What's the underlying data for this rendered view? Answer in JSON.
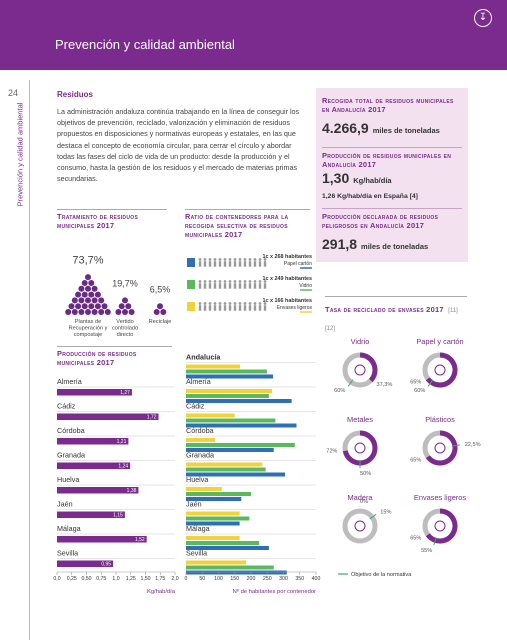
{
  "header": {
    "title": "Prevención y calidad ambiental"
  },
  "sidebar": {
    "page_number": "24",
    "section": "Prevención y calidad ambiental"
  },
  "intro": {
    "heading": "Residuos",
    "text": "La administración andaluza continúa trabajando en la línea de conseguir los objetivos de prevención, reciclado, valorización y eliminación de residuos propuestos en disposiciones y normativas europeas y estatales, en las que destaca el concepto de economía circular, para cerrar el círculo y abordar todas las fases del ciclo de vida de un producto: desde la producción y el consumo, hasta la gestión de los residuos y el mercado de materias primas secundarias."
  },
  "key_figures": [
    {
      "title": "Recogida total de residuos municipales en Andalucía 2017",
      "value": "4.266,9",
      "unit": "miles de toneladas"
    },
    {
      "title": "Producción de residuos municipales en Andalucía 2017",
      "value": "1,30",
      "unit": "Kg/hab/día",
      "note": "1,26 Kg/hab/día en España [4]"
    },
    {
      "title": "Producción declarada de residuos peligrosos en Andalucía 2017",
      "value": "291,8",
      "unit": "miles de toneladas"
    }
  ],
  "chart_data": [
    {
      "type": "pictogram",
      "title": "Tratamiento de residuos municipales 2017",
      "categories": [
        "Plantas de Recuperación y compostaje",
        "Vertido controlado directo",
        "Reciclaje"
      ],
      "values": [
        73.7,
        19.7,
        6.5
      ],
      "value_labels": [
        "73,7%",
        "19,7%",
        "6,5%"
      ],
      "color": "#6a2a86"
    },
    {
      "type": "hbar",
      "title": "Producción de residuos municipales 2017",
      "categories": [
        "Almería",
        "Cádiz",
        "Córdoba",
        "Granada",
        "Huelva",
        "Jaén",
        "Málaga",
        "Sevilla"
      ],
      "values": [
        1.27,
        1.72,
        1.21,
        1.24,
        1.38,
        1.15,
        1.52,
        0.95
      ],
      "value_labels": [
        "1,27",
        "1,72",
        "1,21",
        "1,24",
        "1,38",
        "1,15",
        "1,52",
        "0,95"
      ],
      "color": "#7b2a8e",
      "xlim": [
        0,
        2
      ],
      "xticks": [
        {
          "value": 0,
          "label": "0,0"
        },
        {
          "value": 0.25,
          "label": "0,25"
        },
        {
          "value": 0.5,
          "label": "0,50"
        },
        {
          "value": 0.75,
          "label": "0,75"
        },
        {
          "value": 1,
          "label": "1,0"
        },
        {
          "value": 1.25,
          "label": "1,25"
        },
        {
          "value": 1.5,
          "label": "1,50"
        },
        {
          "value": 1.75,
          "label": "1,75"
        },
        {
          "value": 2,
          "label": "2,0"
        }
      ],
      "xlabel": "Kg/hab/día"
    },
    {
      "type": "grouped_hbar",
      "title": "Ratio de contenedores para la recogida selectiva de residuos municipales 2017",
      "categories": [
        "Andalucía",
        "Almería",
        "Cádiz",
        "Córdoba",
        "Granada",
        "Huelva",
        "Jaén",
        "Málaga",
        "Sevilla"
      ],
      "series": [
        {
          "name": "Envases ligeros",
          "annotation": "1c x 166 habitantes",
          "color": "#f0d23a",
          "values": [
            166,
            265,
            150,
            90,
            235,
            110,
            165,
            165,
            185
          ]
        },
        {
          "name": "Vidrio",
          "annotation": "1c x 249 habitantes",
          "color": "#5cb85c",
          "values": [
            249,
            255,
            275,
            335,
            245,
            200,
            195,
            225,
            270
          ]
        },
        {
          "name": "Papel cartón",
          "annotation": "1c x 268 habitantes",
          "color": "#2f6fb5",
          "values": [
            268,
            325,
            340,
            270,
            305,
            170,
            165,
            255,
            310
          ]
        }
      ],
      "xlim": [
        0,
        400
      ],
      "xticks": [
        0,
        50,
        100,
        150,
        200,
        250,
        300,
        350,
        400
      ],
      "xlabel": "Nº de habitantes por contenedor"
    },
    {
      "type": "donut",
      "title": "Tasa de reciclado de envases 2017",
      "title_note": "[11] [12]",
      "categories": [
        "Vidrio",
        "Papel y cartón",
        "Metales",
        "Plásticos",
        "Madera",
        "Envases ligeros"
      ],
      "values": [
        37.3,
        65,
        72,
        65,
        0,
        65
      ],
      "value_labels": [
        "37,3%",
        "65%",
        "72%",
        "65%",
        "0%",
        "65%"
      ],
      "targets": [
        60,
        60,
        50,
        22.5,
        15,
        55
      ],
      "target_labels": [
        "60%",
        "60%",
        "50%",
        "22,5%",
        "15%",
        "55%"
      ],
      "target_name": "Objetivo de la normativa",
      "color": "#7b2a8e",
      "target_color": "#3aaa6a",
      "lim": [
        0,
        100
      ]
    }
  ]
}
